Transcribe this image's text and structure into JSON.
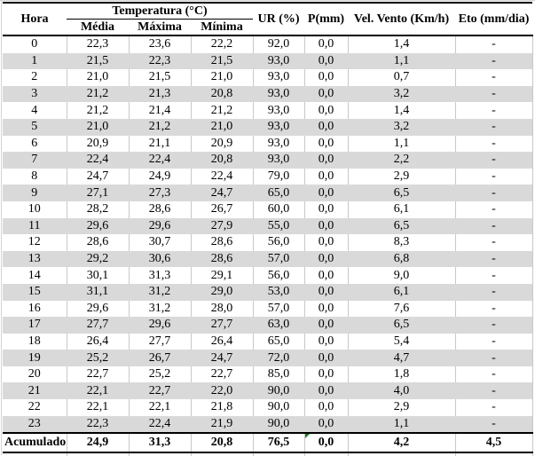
{
  "table": {
    "header": {
      "hora": "Hora",
      "temperatura_group": "Temperatura (°C)",
      "sub": [
        "Média",
        "Máxima",
        "Mínima"
      ],
      "ur": "UR (%)",
      "p": "P(mm)",
      "vel_vento": "Vel. Vento (Km/h)",
      "eto": "Eto (mm/dia)"
    },
    "rows": [
      [
        "0",
        "22,3",
        "23,6",
        "22,2",
        "92,0",
        "0,0",
        "1,4",
        "-"
      ],
      [
        "1",
        "21,5",
        "22,3",
        "21,5",
        "93,0",
        "0,0",
        "1,1",
        "-"
      ],
      [
        "2",
        "21,0",
        "21,5",
        "21,0",
        "93,0",
        "0,0",
        "0,7",
        "-"
      ],
      [
        "3",
        "21,2",
        "21,3",
        "20,8",
        "93,0",
        "0,0",
        "3,2",
        "-"
      ],
      [
        "4",
        "21,2",
        "21,4",
        "21,2",
        "93,0",
        "0,0",
        "1,4",
        "-"
      ],
      [
        "5",
        "21,0",
        "21,2",
        "21,0",
        "93,0",
        "0,0",
        "3,2",
        "-"
      ],
      [
        "6",
        "20,9",
        "21,1",
        "20,9",
        "93,0",
        "0,0",
        "1,1",
        "-"
      ],
      [
        "7",
        "22,4",
        "22,4",
        "20,8",
        "93,0",
        "0,0",
        "2,2",
        "-"
      ],
      [
        "8",
        "24,7",
        "24,9",
        "22,4",
        "79,0",
        "0,0",
        "2,9",
        "-"
      ],
      [
        "9",
        "27,1",
        "27,3",
        "24,7",
        "65,0",
        "0,0",
        "6,5",
        "-"
      ],
      [
        "10",
        "28,2",
        "28,6",
        "26,7",
        "60,0",
        "0,0",
        "6,1",
        "-"
      ],
      [
        "11",
        "29,6",
        "29,6",
        "27,9",
        "55,0",
        "0,0",
        "6,5",
        "-"
      ],
      [
        "12",
        "28,6",
        "30,7",
        "28,6",
        "56,0",
        "0,0",
        "8,3",
        "-"
      ],
      [
        "13",
        "29,2",
        "30,6",
        "28,6",
        "57,0",
        "0,0",
        "6,8",
        "-"
      ],
      [
        "14",
        "30,1",
        "31,3",
        "29,1",
        "56,0",
        "0,0",
        "9,0",
        "-"
      ],
      [
        "15",
        "31,1",
        "31,2",
        "29,0",
        "53,0",
        "0,0",
        "6,1",
        "-"
      ],
      [
        "16",
        "29,6",
        "31,2",
        "28,0",
        "57,0",
        "0,0",
        "7,6",
        "-"
      ],
      [
        "17",
        "27,7",
        "29,6",
        "27,7",
        "63,0",
        "0,0",
        "6,5",
        "-"
      ],
      [
        "18",
        "26,4",
        "27,7",
        "26,4",
        "65,0",
        "0,0",
        "5,4",
        "-"
      ],
      [
        "19",
        "25,2",
        "26,7",
        "24,7",
        "72,0",
        "0,0",
        "4,7",
        "-"
      ],
      [
        "20",
        "22,7",
        "25,2",
        "22,7",
        "85,0",
        "0,0",
        "1,8",
        "-"
      ],
      [
        "21",
        "22,1",
        "22,7",
        "22,0",
        "90,0",
        "0,0",
        "4,0",
        "-"
      ],
      [
        "22",
        "22,1",
        "22,1",
        "21,8",
        "90,0",
        "0,0",
        "2,9",
        "-"
      ],
      [
        "23",
        "22,3",
        "22,4",
        "21,9",
        "90,0",
        "0,0",
        "1,1",
        "-"
      ]
    ],
    "footer": [
      "Acumulado",
      "24,9",
      "31,3",
      "20,8",
      "76,5",
      "0,0",
      "4,2",
      "4,5"
    ]
  },
  "colors": {
    "row_band": "#d9d9d9",
    "gridline": "#c8c8c8",
    "table_border": "#000000",
    "error_indicator_green": "#1f7d1f"
  }
}
